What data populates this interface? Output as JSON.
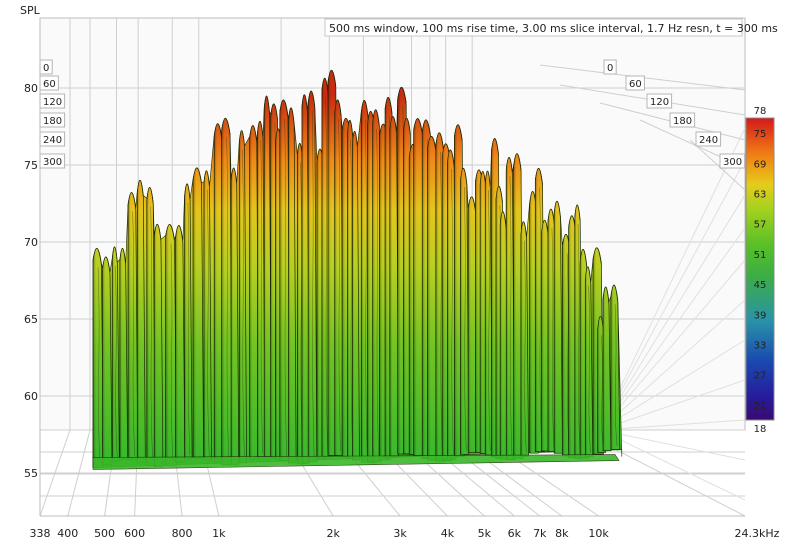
{
  "chart_data": {
    "type": "waterfall",
    "title": "500 ms window, 100 ms rise time, 3.00 ms slice interval, 1.7 Hz resn, t = 300 ms",
    "ylabel": "SPL",
    "xlabel": "24.3kHz",
    "x_scale": "log",
    "xlim": [
      338,
      24300
    ],
    "ylim": [
      52,
      83
    ],
    "x_tick_labels": [
      "338",
      "400",
      "500",
      "600",
      "800",
      "1k",
      "2k",
      "3k",
      "4k",
      "5k",
      "6k",
      "7k",
      "8k",
      "10k"
    ],
    "x_tick_values": [
      338,
      400,
      500,
      600,
      800,
      1000,
      2000,
      3000,
      4000,
      5000,
      6000,
      7000,
      8000,
      10000
    ],
    "y_ticks": [
      55,
      60,
      65,
      70,
      75,
      80
    ],
    "time_axis_labels": [
      "0",
      "60",
      "120",
      "180",
      "240",
      "300"
    ],
    "time_values_ms": [
      0,
      60,
      120,
      180,
      240,
      300
    ],
    "colorbar": {
      "ticks": [
        18,
        21,
        27,
        33,
        39,
        45,
        51,
        57,
        63,
        69,
        75,
        78
      ],
      "range": [
        18,
        78
      ]
    },
    "surface": {
      "frequency_hz": [
        480,
        500,
        550,
        600,
        650,
        700,
        800,
        900,
        1000,
        1200,
        1500,
        2000,
        2500,
        3000,
        4000,
        5000,
        6000,
        7000,
        8000,
        9000,
        10000,
        11000,
        12000
      ],
      "peak_spl_db": [
        71,
        68,
        70,
        74,
        73,
        71,
        74,
        74,
        77,
        79,
        80,
        80,
        79,
        79,
        77,
        76,
        75,
        74,
        73,
        72,
        70,
        68,
        66
      ],
      "floor_spl_db": 56
    },
    "colors": {
      "background": "#ffffff",
      "grid": "#cfcfcf",
      "frame": "#bdbdbd",
      "surface_edge": "#1a2a05"
    }
  }
}
